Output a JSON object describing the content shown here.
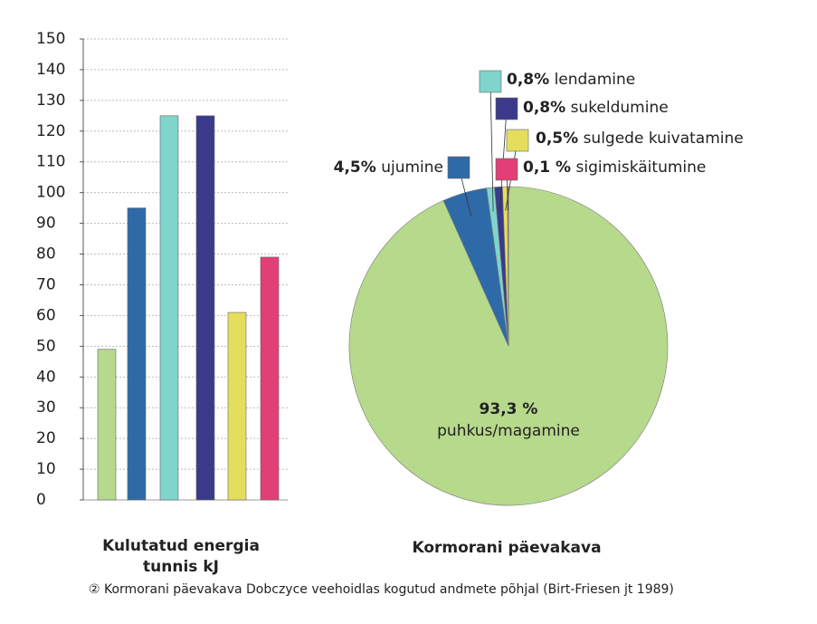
{
  "chart_data": [
    {
      "type": "bar",
      "xlabel": "Kulutatud energia tunnis kJ",
      "categories": [
        null,
        null,
        null,
        null,
        null,
        null
      ],
      "values": [
        49,
        95,
        125,
        125,
        61,
        79
      ],
      "colors": [
        "#b6d98c",
        "#2f6aa8",
        "#7fd4cc",
        "#3b3a8a",
        "#e5de5c",
        "#e23f78"
      ],
      "ylim": [
        0,
        150
      ],
      "yticks": [
        0,
        10,
        20,
        30,
        40,
        50,
        60,
        70,
        80,
        90,
        100,
        110,
        120,
        130,
        140,
        150
      ],
      "grid": true
    },
    {
      "type": "pie",
      "title": "Kormorani päevakava",
      "categories": [
        "puhkus/magamine",
        "ujumine",
        "lendamine",
        "sukeldumine",
        "sulgede kuivatamine",
        "sigimiskäitumine"
      ],
      "values": [
        93.3,
        4.5,
        0.8,
        0.8,
        0.5,
        0.1
      ],
      "value_labels": [
        "93,3 %",
        "4,5%",
        "0,8%",
        "0,8%",
        "0,5%",
        "0,1 %"
      ],
      "colors": [
        "#b6d98c",
        "#2f6aa8",
        "#7fd4cc",
        "#3b3a8a",
        "#e5de5c",
        "#e23f78"
      ]
    }
  ],
  "caption": "② Kormorani päevakava Dobczyce veehoidlas kogutud andmete põhjal (Birt-Friesen jt 1989)"
}
